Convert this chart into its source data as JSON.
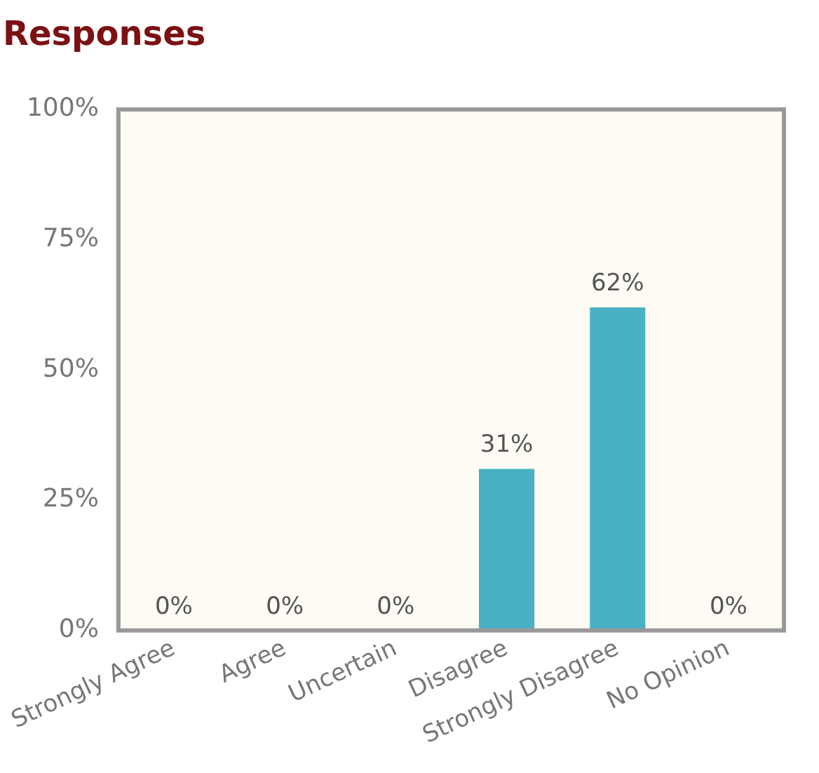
{
  "chart_data": {
    "type": "bar",
    "title": "Responses",
    "categories": [
      "Strongly Agree",
      "Agree",
      "Uncertain",
      "Disagree",
      "Strongly Disagree",
      "No Opinion"
    ],
    "values": [
      0,
      0,
      0,
      31,
      62,
      0
    ],
    "value_labels": [
      "0%",
      "0%",
      "0%",
      "31%",
      "62%",
      "0%"
    ],
    "color": "#4ab0c4",
    "ylim": [
      0,
      100
    ],
    "yticks": [
      {
        "value": 0,
        "label": "0%"
      },
      {
        "value": 25,
        "label": "25%"
      },
      {
        "value": 50,
        "label": "50%"
      },
      {
        "value": 75,
        "label": "75%"
      },
      {
        "value": 100,
        "label": "100%"
      }
    ],
    "grid": false,
    "legend": false
  }
}
